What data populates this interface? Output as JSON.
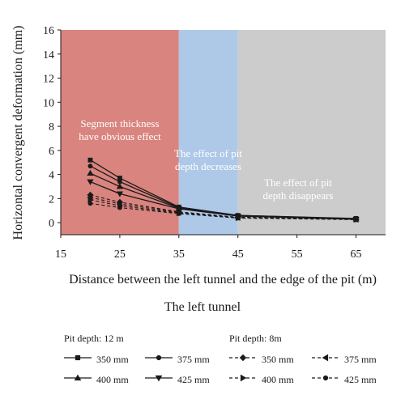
{
  "chart_data": {
    "type": "line",
    "title": "The left tunnel",
    "xlabel": "Distance between the left tunnel and the edge of the pit (m)",
    "ylabel": "Horizontal convergent deformation (mm)",
    "xlim": [
      15,
      70
    ],
    "ylim": [
      -1,
      16
    ],
    "xticks": [
      15,
      25,
      35,
      45,
      55,
      65
    ],
    "yticks": [
      0,
      2,
      4,
      6,
      8,
      10,
      12,
      14,
      16
    ],
    "x": [
      20,
      25,
      35,
      45,
      65
    ],
    "grid": false,
    "regions": [
      {
        "from": 15,
        "to": 35,
        "color": "#d9847f",
        "label": "Segment thickness have obvious effect",
        "label_color": "#ffffff"
      },
      {
        "from": 35,
        "to": 45,
        "color": "#aec8e8",
        "label": "The effect of pit depth decreases",
        "label_color": "#ffffff"
      },
      {
        "from": 45,
        "to": 70,
        "color": "#cccccc",
        "label": "The effect of pit depth disappears",
        "label_color": "#ffffff"
      }
    ],
    "legend_groups": [
      "Pit depth: 12 m",
      "Pit depth: 8m"
    ],
    "series": [
      {
        "name": "350 mm",
        "group": 0,
        "marker": "square",
        "dash": false,
        "values": [
          5.2,
          3.7,
          1.3,
          0.6,
          0.35
        ]
      },
      {
        "name": "375 mm",
        "group": 0,
        "marker": "circle",
        "dash": false,
        "values": [
          4.7,
          3.4,
          1.25,
          0.6,
          0.32
        ]
      },
      {
        "name": "400 mm",
        "group": 0,
        "marker": "triangle-up",
        "dash": false,
        "values": [
          4.1,
          3.0,
          1.2,
          0.55,
          0.3
        ]
      },
      {
        "name": "425 mm",
        "group": 0,
        "marker": "triangle-down",
        "dash": false,
        "values": [
          3.4,
          2.4,
          1.15,
          0.55,
          0.28
        ]
      },
      {
        "name": "350 mm",
        "group": 1,
        "marker": "diamond",
        "dash": true,
        "values": [
          2.3,
          1.7,
          0.9,
          0.45,
          0.3
        ]
      },
      {
        "name": "375 mm",
        "group": 1,
        "marker": "triangle-left",
        "dash": true,
        "values": [
          2.1,
          1.55,
          0.85,
          0.42,
          0.28
        ]
      },
      {
        "name": "400 mm",
        "group": 1,
        "marker": "triangle-right",
        "dash": true,
        "values": [
          1.9,
          1.4,
          0.8,
          0.4,
          0.27
        ]
      },
      {
        "name": "425 mm",
        "group": 1,
        "marker": "circle",
        "dash": true,
        "values": [
          1.6,
          1.25,
          0.75,
          0.38,
          0.25
        ]
      }
    ]
  },
  "colors": {
    "line": "#1a1a1a"
  }
}
